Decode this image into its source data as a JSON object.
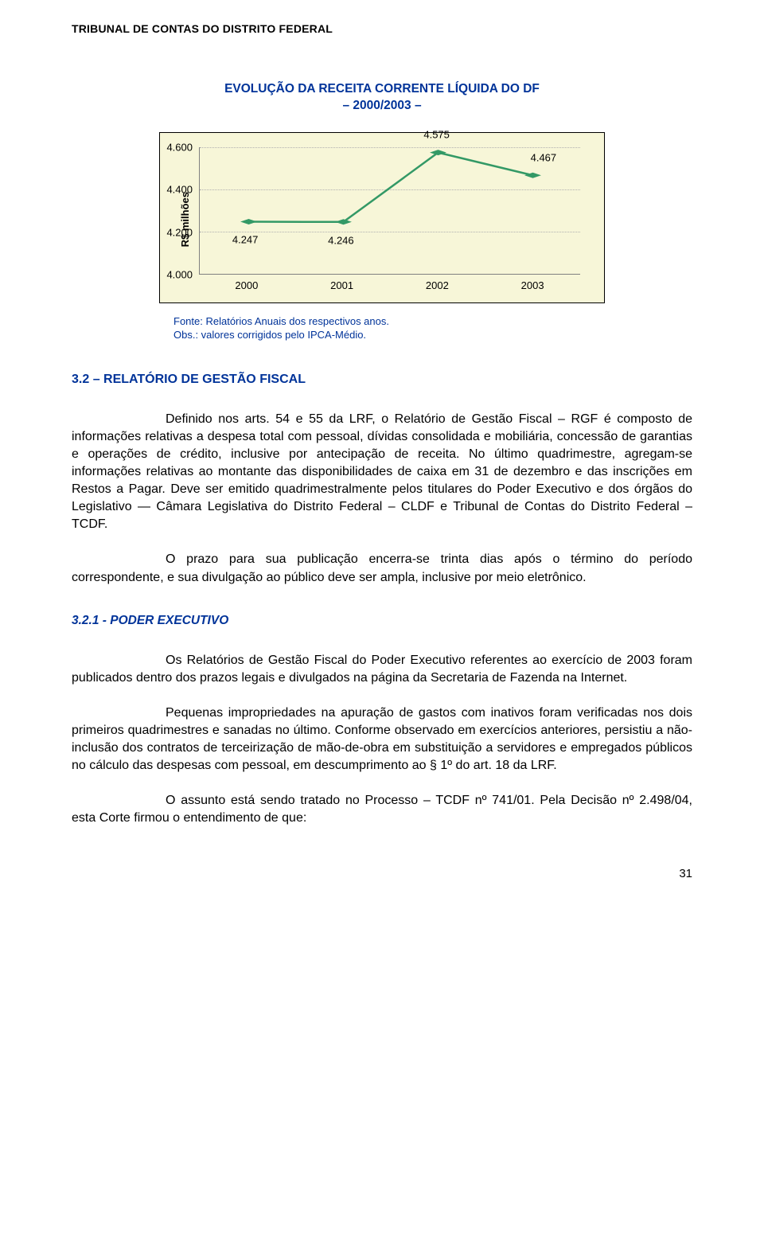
{
  "header": "TRIBUNAL DE CONTAS DO DISTRITO FEDERAL",
  "chart": {
    "type": "line",
    "title_line1": "EVOLUÇÃO DA RECEITA CORRENTE LÍQUIDA DO DF",
    "title_line2": "– 2000/2003 –",
    "y_axis_label": "R$ milhões",
    "categories": [
      "2000",
      "2001",
      "2002",
      "2003"
    ],
    "values": [
      4.247,
      4.246,
      4.575,
      4.467
    ],
    "data_labels": [
      "4.247",
      "4.246",
      "4.575",
      "4.467"
    ],
    "y_ticks": [
      "4.000",
      "4.200",
      "4.400",
      "4.600"
    ],
    "ylim_min": 4.0,
    "ylim_max": 4.6,
    "line_color": "#339966",
    "marker_color": "#339966",
    "line_width": 2.5,
    "marker_size": 8,
    "background_color": "#f7f6d8",
    "grid_color": "#b0b0b0",
    "axis_color": "#808080",
    "label_fontsize": 13,
    "title_fontsize": 15.5,
    "title_color": "#003399"
  },
  "source": {
    "line1": "Fonte: Relatórios Anuais dos respectivos anos.",
    "line2": "Obs.: valores corrigidos pelo IPCA-Médio."
  },
  "section32": "3.2 – RELATÓRIO DE GESTÃO FISCAL",
  "para1": "Definido nos arts. 54 e 55 da LRF, o Relatório de Gestão Fiscal – RGF é composto de informações relativas a despesa total com pessoal, dívidas consolidada e mobiliária, concessão de garantias e operações de crédito, inclusive por antecipação de receita. No último quadrimestre, agregam-se informações relativas ao montante das disponibilidades de caixa em 31 de dezembro e das inscrições em Restos a Pagar. Deve ser emitido quadrimestralmente pelos titulares do Poder Executivo e dos órgãos do Legislativo — Câmara Legislativa do Distrito Federal – CLDF e  Tribunal de Contas do Distrito Federal – TCDF.",
  "para2": "O prazo para sua publicação encerra-se  trinta dias após o término do período correspondente, e sua divulgação ao público deve ser ampla, inclusive por meio eletrônico.",
  "section321": "3.2.1 - PODER EXECUTIVO",
  "para3": "Os Relatórios de Gestão Fiscal do Poder Executivo referentes ao exercício de 2003 foram publicados dentro dos prazos legais e divulgados na página da Secretaria de Fazenda na Internet.",
  "para4": "Pequenas impropriedades na apuração de gastos com inativos foram verificadas nos dois primeiros quadrimestres e sanadas no último. Conforme observado em exercícios anteriores, persistiu a não-inclusão dos contratos de terceirização de mão-de-obra em substituição a servidores e empregados públicos no cálculo das despesas com pessoal, em descumprimento ao § 1º do art. 18 da LRF.",
  "para5": "O assunto está sendo tratado no Processo – TCDF nº 741/01. Pela Decisão nº 2.498/04, esta Corte firmou o entendimento de que:",
  "page_number": "31"
}
